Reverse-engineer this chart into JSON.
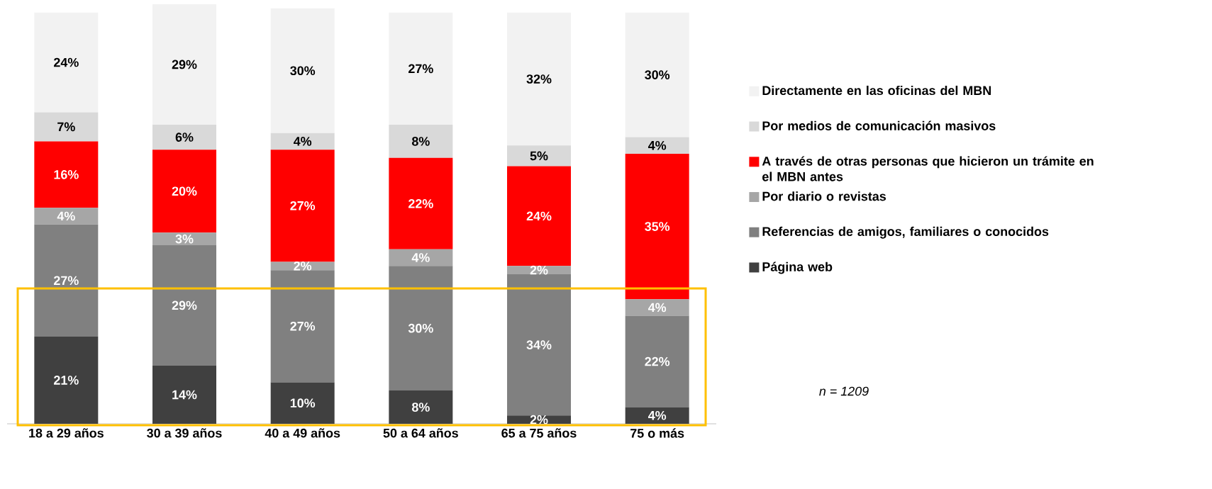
{
  "chart_data": {
    "type": "bar",
    "stacked": true,
    "data_labels": false,
    "legend": "right",
    "categories": [
      "18 a 29 años",
      "30 a 39 años",
      "40 a 49 años",
      "50 a 64 años",
      "65 a 75 años",
      "75 o más"
    ],
    "ylim": [
      0,
      101
    ],
    "series": [
      {
        "name": "Página web",
        "color": "#404040",
        "values": [
          21,
          14,
          10,
          8,
          2,
          4
        ],
        "value_labels": [
          "21%",
          "14%",
          "10%",
          "8%",
          "2%",
          "4%"
        ]
      },
      {
        "name": "Referencias de amigos, familiares o conocidos",
        "color": "#808080",
        "values": [
          27,
          29,
          27,
          30,
          34,
          22
        ],
        "value_labels": [
          "27%",
          "29%",
          "27%",
          "30%",
          "34%",
          "22%"
        ]
      },
      {
        "name": "Por diario o revistas",
        "color": "#a6a6a6",
        "values": [
          4,
          3,
          2,
          4,
          2,
          4
        ],
        "value_labels": [
          "4%",
          "3%",
          "2%",
          "4%",
          "2%",
          "4%"
        ]
      },
      {
        "name": "A través de otras personas que hicieron un trámite en el MBN antes",
        "color": "#ff0000",
        "values": [
          16,
          20,
          27,
          22,
          24,
          35
        ],
        "value_labels": [
          "16%",
          "20%",
          "27%",
          "22%",
          "24%",
          "35%"
        ]
      },
      {
        "name": "Por medios de comunicación masivos",
        "color": "#d9d9d9",
        "values": [
          7,
          6,
          4,
          8,
          5,
          4
        ],
        "value_labels": [
          "7%",
          "6%",
          "4%",
          "8%",
          "5%",
          "4%"
        ]
      },
      {
        "name": "Directamente en las oficinas del MBN",
        "color": "#f2f2f2",
        "values": [
          24,
          29,
          30,
          27,
          32,
          30
        ],
        "value_labels": [
          "24%",
          "29%",
          "30%",
          "27%",
          "32%",
          "30%"
        ]
      }
    ],
    "annotations": [
      "*n =  1209*"
    ]
  }
}
